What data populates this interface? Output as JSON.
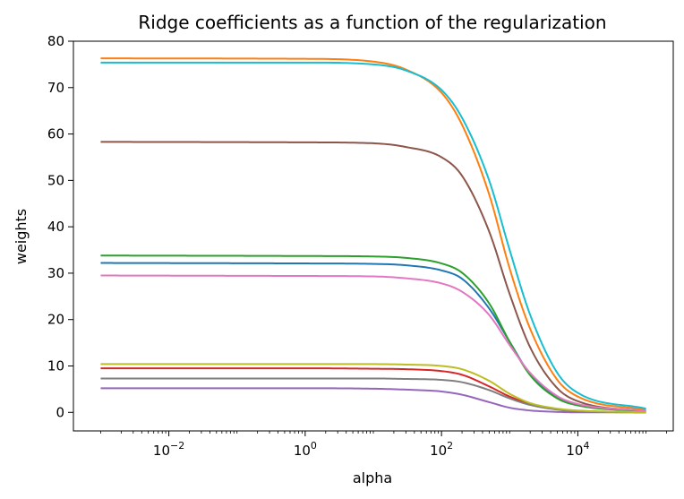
{
  "chart_data": {
    "type": "line",
    "title": "Ridge coefficients as a function of the regularization",
    "xlabel": "alpha",
    "ylabel": "weights",
    "xscale": "log",
    "xlim": [
      0.001,
      100000
    ],
    "ylim": [
      -4,
      80
    ],
    "grid": false,
    "legend": "none",
    "x_ticks": [
      {
        "value": 0.01,
        "base": "10",
        "exp": "−2"
      },
      {
        "value": 1,
        "base": "10",
        "exp": "0"
      },
      {
        "value": 100,
        "base": "10",
        "exp": "2"
      },
      {
        "value": 10000,
        "base": "10",
        "exp": "4"
      }
    ],
    "y_ticks": [
      "0",
      "10",
      "20",
      "30",
      "40",
      "50",
      "60",
      "70",
      "80"
    ],
    "alpha_range": [
      0.001,
      100000
    ],
    "series": [
      {
        "color": "#1f77b4",
        "values": [
          [
            0.001,
            32.2
          ],
          [
            1,
            32.1
          ],
          [
            10,
            32.0
          ],
          [
            30,
            31.7
          ],
          [
            100,
            30.6
          ],
          [
            200,
            28.8
          ],
          [
            500,
            22.4
          ],
          [
            1000,
            15.2
          ],
          [
            2000,
            8.2
          ],
          [
            5000,
            3.2
          ],
          [
            10000,
            1.6
          ],
          [
            100000,
            0.3
          ]
        ]
      },
      {
        "color": "#ff7f0e",
        "values": [
          [
            0.001,
            76.3
          ],
          [
            1,
            76.2
          ],
          [
            10,
            75.6
          ],
          [
            30,
            73.9
          ],
          [
            100,
            68.9
          ],
          [
            200,
            62.0
          ],
          [
            500,
            47.0
          ],
          [
            1000,
            31.0
          ],
          [
            2000,
            18.0
          ],
          [
            5000,
            7.0
          ],
          [
            10000,
            3.4
          ],
          [
            100000,
            0.5
          ]
        ]
      },
      {
        "color": "#2ca02c",
        "values": [
          [
            0.001,
            33.8
          ],
          [
            1,
            33.7
          ],
          [
            10,
            33.6
          ],
          [
            30,
            33.3
          ],
          [
            100,
            32.1
          ],
          [
            200,
            30.1
          ],
          [
            500,
            23.5
          ],
          [
            1000,
            15.2
          ],
          [
            2000,
            8.0
          ],
          [
            5000,
            3.0
          ],
          [
            10000,
            1.5
          ],
          [
            100000,
            0.2
          ]
        ]
      },
      {
        "color": "#d62728",
        "values": [
          [
            0.001,
            9.5
          ],
          [
            1,
            9.5
          ],
          [
            10,
            9.4
          ],
          [
            30,
            9.3
          ],
          [
            100,
            8.9
          ],
          [
            200,
            8.1
          ],
          [
            500,
            5.6
          ],
          [
            1000,
            3.4
          ],
          [
            2000,
            1.8
          ],
          [
            5000,
            0.7
          ],
          [
            10000,
            0.3
          ],
          [
            100000,
            0.0
          ]
        ]
      },
      {
        "color": "#9467bd",
        "values": [
          [
            0.001,
            5.2
          ],
          [
            1,
            5.2
          ],
          [
            10,
            5.1
          ],
          [
            30,
            4.9
          ],
          [
            100,
            4.5
          ],
          [
            200,
            3.8
          ],
          [
            500,
            2.2
          ],
          [
            1000,
            1.0
          ],
          [
            2000,
            0.4
          ],
          [
            5000,
            0.1
          ],
          [
            10000,
            0.0
          ],
          [
            100000,
            0.0
          ]
        ]
      },
      {
        "color": "#8c564b",
        "values": [
          [
            0.001,
            58.3
          ],
          [
            1,
            58.2
          ],
          [
            10,
            58.0
          ],
          [
            30,
            57.2
          ],
          [
            100,
            55.0
          ],
          [
            200,
            51.0
          ],
          [
            500,
            39.0
          ],
          [
            1000,
            25.5
          ],
          [
            2000,
            14.0
          ],
          [
            5000,
            5.2
          ],
          [
            10000,
            2.4
          ],
          [
            100000,
            0.2
          ]
        ]
      },
      {
        "color": "#e377c2",
        "values": [
          [
            0.001,
            29.5
          ],
          [
            1,
            29.4
          ],
          [
            10,
            29.3
          ],
          [
            30,
            28.9
          ],
          [
            100,
            27.8
          ],
          [
            200,
            26.0
          ],
          [
            500,
            21.0
          ],
          [
            1000,
            14.5
          ],
          [
            2000,
            8.5
          ],
          [
            5000,
            3.5
          ],
          [
            10000,
            1.8
          ],
          [
            100000,
            0.3
          ]
        ]
      },
      {
        "color": "#7f7f7f",
        "values": [
          [
            0.001,
            7.3
          ],
          [
            1,
            7.3
          ],
          [
            10,
            7.3
          ],
          [
            30,
            7.2
          ],
          [
            100,
            7.0
          ],
          [
            200,
            6.5
          ],
          [
            500,
            4.8
          ],
          [
            1000,
            3.0
          ],
          [
            2000,
            1.6
          ],
          [
            5000,
            0.6
          ],
          [
            10000,
            0.2
          ],
          [
            100000,
            0.0
          ]
        ]
      },
      {
        "color": "#bcbd22",
        "values": [
          [
            0.001,
            10.4
          ],
          [
            1,
            10.4
          ],
          [
            10,
            10.4
          ],
          [
            30,
            10.3
          ],
          [
            100,
            10.0
          ],
          [
            200,
            9.3
          ],
          [
            500,
            6.8
          ],
          [
            1000,
            4.0
          ],
          [
            2000,
            2.0
          ],
          [
            5000,
            0.8
          ],
          [
            10000,
            0.4
          ],
          [
            100000,
            0.0
          ]
        ]
      },
      {
        "color": "#17becf",
        "values": [
          [
            0.001,
            75.4
          ],
          [
            1,
            75.4
          ],
          [
            10,
            75.0
          ],
          [
            30,
            73.7
          ],
          [
            100,
            69.5
          ],
          [
            200,
            63.5
          ],
          [
            500,
            50.0
          ],
          [
            1000,
            35.0
          ],
          [
            2000,
            21.0
          ],
          [
            5000,
            8.5
          ],
          [
            10000,
            4.2
          ],
          [
            100000,
            0.8
          ]
        ]
      }
    ]
  }
}
